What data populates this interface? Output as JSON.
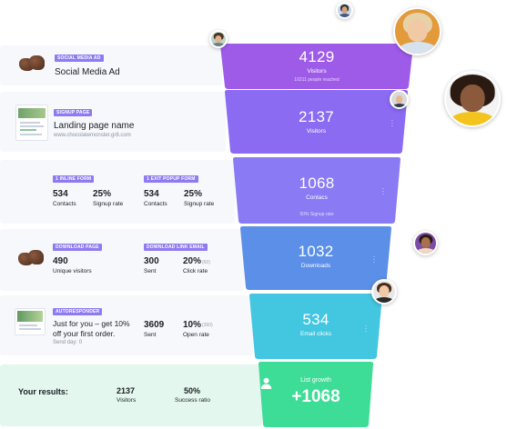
{
  "colors": {
    "seg1": "#9d5be8",
    "seg2": "#8a6bf2",
    "seg3": "#8a7af4",
    "seg4": "#5b8fe8",
    "seg5": "#43c6e0",
    "seg6": "#3ddc97",
    "tag": "#8f7bf1"
  },
  "rows": {
    "social": {
      "tag": "SOCIAL MEDIA AD",
      "title": "Social Media Ad"
    },
    "signup": {
      "tag": "SIGNUP PAGE",
      "title": "Landing page name",
      "url": "www.chocolatemonster.gr8.com"
    },
    "forms": {
      "inline_tag": "1 INLINE FORM",
      "inline_contacts": "534",
      "inline_contacts_label": "Contacts",
      "inline_rate": "25%",
      "inline_rate_label": "Signup rate",
      "exit_tag": "1 EXIT POPUP FORM",
      "exit_contacts": "534",
      "exit_contacts_label": "Contacts",
      "exit_rate": "25%",
      "exit_rate_label": "Signup rate"
    },
    "download": {
      "page_tag": "DOWNLOAD PAGE",
      "visitors": "490",
      "visitors_label": "Unique visitors",
      "email_tag": "DOWNLOAD LINK EMAIL",
      "sent": "300",
      "sent_label": "Sent",
      "click_rate": "20%",
      "click_rate_paren": "(60)",
      "click_rate_label": "Click rate"
    },
    "autoresponder": {
      "tag": "AUTORESPONDER",
      "title_line1": "Just for you – get 10%",
      "title_line2": "off your first order.",
      "send_day": "Send day: 0",
      "sent": "3609",
      "sent_label": "Sent",
      "open_rate": "10%",
      "open_rate_paren": "(360)",
      "open_rate_label": "Open rate"
    },
    "results": {
      "label": "Your results:",
      "visitors": "2137",
      "visitors_label": "Visitors",
      "success": "50%",
      "success_label": "Success ratio"
    }
  },
  "funnel": {
    "s1": {
      "value": "4129",
      "label": "Visitors",
      "note": "10211 people reached"
    },
    "s2": {
      "value": "2137",
      "label": "Visitors"
    },
    "s3": {
      "value": "1068",
      "label": "Contacs",
      "note": "50% Signup rate"
    },
    "s4": {
      "value": "1032",
      "label": "Downloads"
    },
    "s5": {
      "value": "534",
      "label": "Email clicks"
    },
    "s6": {
      "title": "List growth",
      "value": "+1068"
    }
  },
  "icons": {
    "menu": "vertical-dots-icon",
    "growth": "user-icon"
  }
}
